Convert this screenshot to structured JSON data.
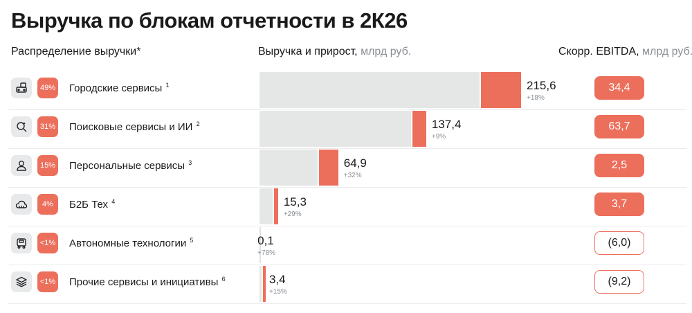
{
  "title": "Выручка по блокам отчетности в 2К26",
  "headers": {
    "distribution": "Распределение выручки*",
    "revenue_label": "Выручка и прирост,",
    "revenue_unit": "млрд руб.",
    "ebitda_label": "Скорр. EBITDA,",
    "ebitda_unit": "млрд руб."
  },
  "colors": {
    "accent": "#ec6f5c",
    "bar_base": "#e5e6e6",
    "icon_bg": "#e8e9ea",
    "muted": "#8a8f94"
  },
  "chart_data": {
    "type": "bar",
    "orientation": "horizontal",
    "categories": [
      "Городские сервисы",
      "Поисковые сервисы и ИИ",
      "Персональные сервисы",
      "Б2Б Тех",
      "Автономные технологии",
      "Прочие сервисы и инициативы"
    ],
    "series": [
      {
        "values": [
          215.6,
          137.4,
          64.9,
          15.3,
          0.1,
          3.4
        ]
      }
    ],
    "growth_pct": [
      18,
      9,
      32,
      29,
      78,
      15
    ],
    "ebitda": [
      34.4,
      63.7,
      2.5,
      3.7,
      -6.0,
      -9.2
    ],
    "share": [
      "49%",
      "31%",
      "15%",
      "4%",
      "<1%",
      "<1%"
    ]
  },
  "segments": [
    {
      "icon": "city-services-icon",
      "share": "49%",
      "name": "Городские сервисы",
      "note": "1",
      "value_label": "215,6",
      "growth_label": "+18%",
      "ebitda_label": "34,4",
      "ebitda_negative": false
    },
    {
      "icon": "search-ai-icon",
      "share": "31%",
      "name": "Поисковые сервисы и ИИ",
      "note": "2",
      "value_label": "137,4",
      "growth_label": "+9%",
      "ebitda_label": "63,7",
      "ebitda_negative": false
    },
    {
      "icon": "person-icon",
      "share": "15%",
      "name": "Персональные сервисы",
      "note": "3",
      "value_label": "64,9",
      "growth_label": "+32%",
      "ebitda_label": "2,5",
      "ebitda_negative": false
    },
    {
      "icon": "cloud-icon",
      "share": "4%",
      "name": "Б2Б Тех",
      "note": "4",
      "value_label": "15,3",
      "growth_label": "+29%",
      "ebitda_label": "3,7",
      "ebitda_negative": false
    },
    {
      "icon": "robot-delivery-icon",
      "share": "<1%",
      "name": "Автономные технологии",
      "note": "5",
      "value_label": "0,1",
      "growth_label": "+78%",
      "ebitda_label": "(6,0)",
      "ebitda_negative": true
    },
    {
      "icon": "layers-icon",
      "share": "<1%",
      "name": "Прочие сервисы и инициативы",
      "note": "6",
      "value_label": "3,4",
      "growth_label": "+15%",
      "ebitda_label": "(9,2)",
      "ebitda_negative": true
    }
  ]
}
